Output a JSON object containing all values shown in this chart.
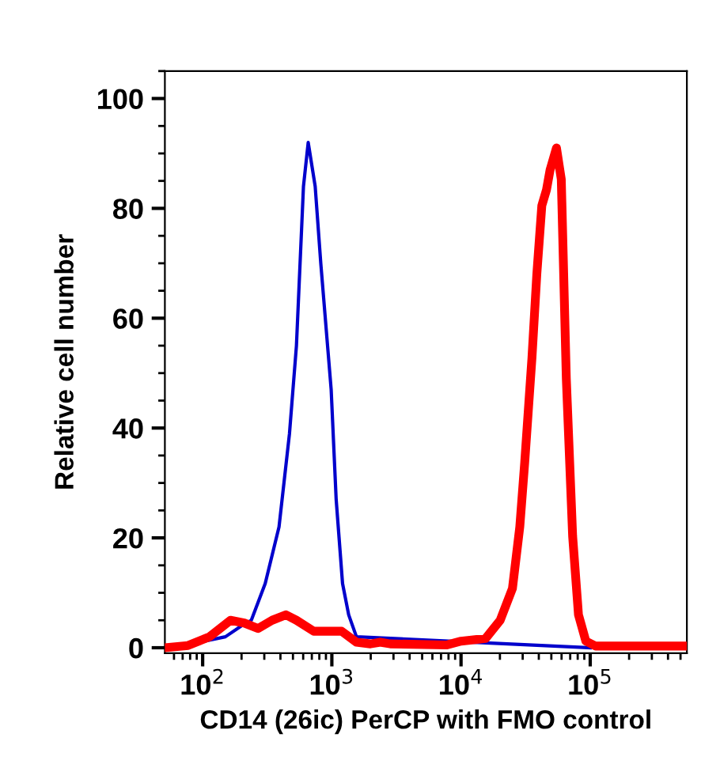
{
  "chart_data": {
    "type": "line",
    "xlabel": "CD14 (26ic) PerCP with FMO control",
    "ylabel": "Relative cell number",
    "log": "x",
    "xlim": [
      51,
      560000
    ],
    "ylim": [
      -1,
      105
    ],
    "xticks": [
      {
        "value": 100,
        "label": "10$^{2}$"
      },
      {
        "value": 1000,
        "label": "10$^{3}$"
      },
      {
        "value": 10000,
        "label": "10$^{4}$"
      },
      {
        "value": 100000,
        "label": "10$^{5}$"
      }
    ],
    "yticks": [
      0,
      20,
      40,
      60,
      80,
      100
    ],
    "grid": false,
    "marker": "none",
    "line_style": "solid",
    "series": [
      {
        "color": "#0000cc",
        "x": [
          60,
          150,
          200,
          238,
          305,
          390,
          470,
          532,
          603,
          656,
          743,
          821,
          988,
          1080,
          1210,
          1350,
          1550,
          100000
        ],
        "values": [
          0,
          2,
          4,
          5,
          11.7,
          22,
          39,
          55,
          84,
          92,
          84,
          70,
          47,
          27,
          11.7,
          6,
          2,
          0
        ]
      },
      {
        "color": "#ff0000",
        "x": [
          51,
          77,
          113,
          164,
          210,
          268,
          345,
          441,
          532,
          724,
          1190,
          1550,
          1990,
          2370,
          2830,
          7690,
          10000,
          15500,
          20100,
          25000,
          28500,
          31100,
          35400,
          38600,
          42200,
          45900,
          48900,
          54800,
          59700,
          65300,
          73100,
          81100,
          92500,
          110000,
          560000
        ],
        "values": [
          0,
          0.4,
          2,
          5,
          4.5,
          3.5,
          5,
          6,
          5,
          3,
          3,
          1,
          0.7,
          1,
          0.7,
          0.5,
          1.2,
          1.7,
          5,
          10.8,
          22,
          33.7,
          52.8,
          68,
          80.5,
          83.4,
          87,
          91,
          85.3,
          49,
          20.3,
          6,
          1.2,
          0.3,
          0.3
        ]
      }
    ]
  }
}
